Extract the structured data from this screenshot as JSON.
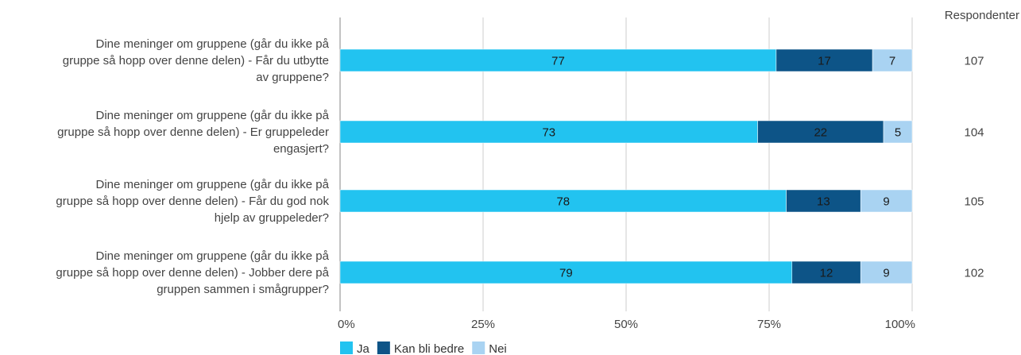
{
  "chart_data": {
    "type": "bar",
    "orientation": "horizontal",
    "stacked": true,
    "percent": true,
    "categories": [
      "Dine meninger om gruppene (går du ikke på gruppe så hopp over denne delen) - Får du utbytte av gruppene?",
      "Dine meninger om gruppene (går du ikke på gruppe så hopp over denne delen) - Er gruppeleder engasjert?",
      "Dine meninger om gruppene (går du ikke på gruppe så hopp over denne delen) - Får du god nok hjelp av gruppeleder?",
      "Dine meninger om gruppene (går du ikke på gruppe så hopp over denne delen) - Jobber dere på gruppen sammen i smågrupper?"
    ],
    "category_lines": [
      [
        "Dine meninger om gruppene (går du ikke på",
        "gruppe så hopp over denne delen) - Får du utbytte",
        "av gruppene?"
      ],
      [
        "Dine meninger om gruppene (går du ikke på",
        "gruppe så hopp over denne delen) - Er gruppeleder",
        "engasjert?"
      ],
      [
        "Dine meninger om gruppene (går du ikke på",
        "gruppe så hopp over denne delen) - Får du god nok",
        "hjelp av gruppeleder?"
      ],
      [
        "Dine meninger om gruppene (går du ikke på",
        "gruppe så hopp over denne delen) - Jobber dere på",
        "gruppen sammen i smågrupper?"
      ]
    ],
    "series": [
      {
        "name": "Ja",
        "values": [
          77,
          73,
          78,
          79
        ],
        "color": "#22c3f0"
      },
      {
        "name": "Kan bli bedre",
        "values": [
          17,
          22,
          13,
          12
        ],
        "color": "#0d5487"
      },
      {
        "name": "Nei",
        "values": [
          7,
          5,
          9,
          9
        ],
        "color": "#a9d3f2"
      }
    ],
    "respondents_label": "Respondenter",
    "respondents": [
      107,
      104,
      105,
      102
    ],
    "xlim": [
      0,
      100
    ],
    "x_ticks": [
      "0%",
      "25%",
      "50%",
      "75%",
      "100%"
    ],
    "grid": true,
    "legend_position": "bottom-left"
  }
}
